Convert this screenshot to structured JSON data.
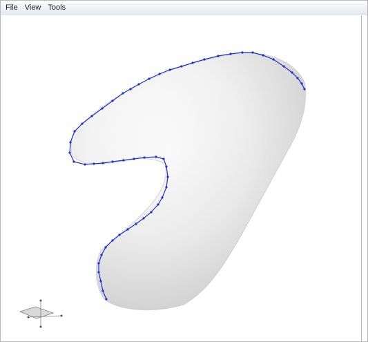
{
  "menu": {
    "items": [
      {
        "id": "file",
        "label": "File"
      },
      {
        "id": "view",
        "label": "View"
      },
      {
        "id": "tools",
        "label": "Tools"
      }
    ]
  },
  "colors": {
    "control_curve": "#1e2fd2",
    "shape_light": "#ffffff",
    "shape_shadow": "#b9b9b9"
  },
  "icons": [
    "axis-gizmo-icon"
  ]
}
